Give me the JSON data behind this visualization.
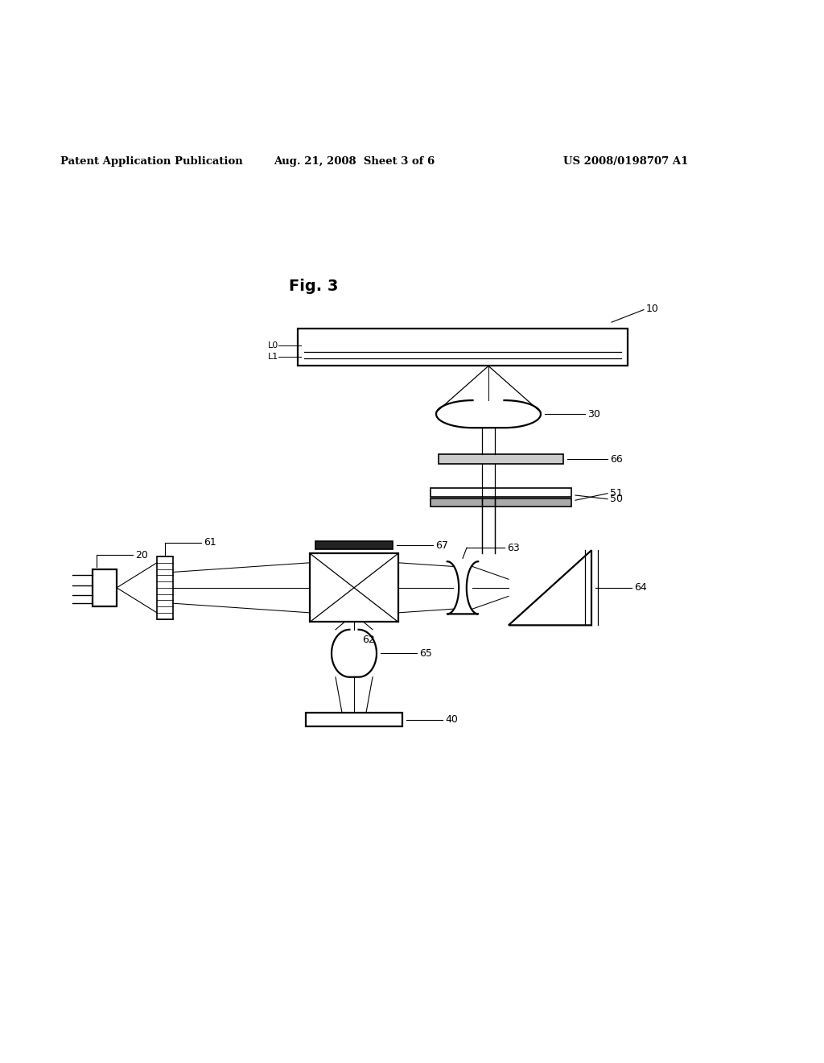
{
  "header_left": "Patent Application Publication",
  "header_mid": "Aug. 21, 2008  Sheet 3 of 6",
  "header_right": "US 2008/0198707 A1",
  "fig_label": "Fig. 3",
  "bg_color": "#ffffff",
  "lw": 1.2,
  "lw_thick": 1.6,
  "fs": 9,
  "fs_header": 9.5,
  "fs_fig": 14
}
